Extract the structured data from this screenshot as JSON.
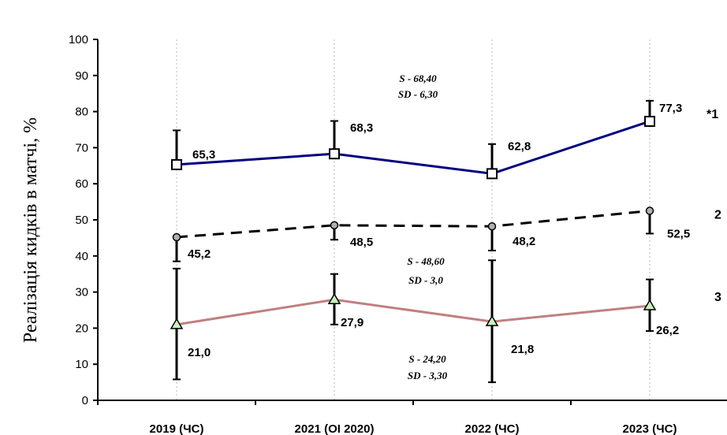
{
  "chart_data": {
    "type": "line",
    "ylabel": "Реалізація кидків в матчі, %",
    "ylim": [
      0,
      100
    ],
    "yticks": [
      0,
      10,
      20,
      30,
      40,
      50,
      60,
      70,
      80,
      90,
      100
    ],
    "categories": [
      "2019 (ЧС)",
      "2021 (ОІ 2020)",
      "2022 (ЧС)",
      "2023 (ЧС)"
    ],
    "grid": true,
    "series": [
      {
        "name": "*1",
        "values": [
          65.3,
          68.3,
          62.8,
          77.3
        ],
        "labels": [
          "65,3",
          "68,3",
          "62,8",
          "77,3"
        ],
        "error_low": [
          65.3,
          68.3,
          62.8,
          77.3
        ],
        "error_high": [
          74.8,
          77.4,
          71.0,
          83.0
        ],
        "color": "#000080",
        "marker": "square",
        "line_style": "solid",
        "stats": {
          "s": "S - 68,40",
          "sd": "SD - 6,30"
        }
      },
      {
        "name": "2",
        "values": [
          45.2,
          48.5,
          48.2,
          52.5
        ],
        "labels": [
          "45,2",
          "48,5",
          "48,2",
          "52,5"
        ],
        "error_low": [
          38.5,
          44.5,
          41.5,
          46.2
        ],
        "error_high": [
          45.2,
          48.5,
          48.2,
          52.5
        ],
        "color": "#000000",
        "marker": "circle",
        "line_style": "dashed",
        "stats": {
          "s": "S - 48,60",
          "sd": "SD - 3,0"
        }
      },
      {
        "name": "3",
        "values": [
          21.0,
          27.9,
          21.8,
          26.2
        ],
        "labels": [
          "21,0",
          "27,9",
          "21,8",
          "26,2"
        ],
        "error_low": [
          5.8,
          21.0,
          5.0,
          19.2
        ],
        "error_high": [
          36.5,
          35.0,
          38.8,
          33.5
        ],
        "color": "#c08080",
        "marker": "triangle",
        "line_style": "solid",
        "stats": {
          "s": "S - 24,20",
          "sd": "SD - 3,30"
        }
      }
    ]
  }
}
